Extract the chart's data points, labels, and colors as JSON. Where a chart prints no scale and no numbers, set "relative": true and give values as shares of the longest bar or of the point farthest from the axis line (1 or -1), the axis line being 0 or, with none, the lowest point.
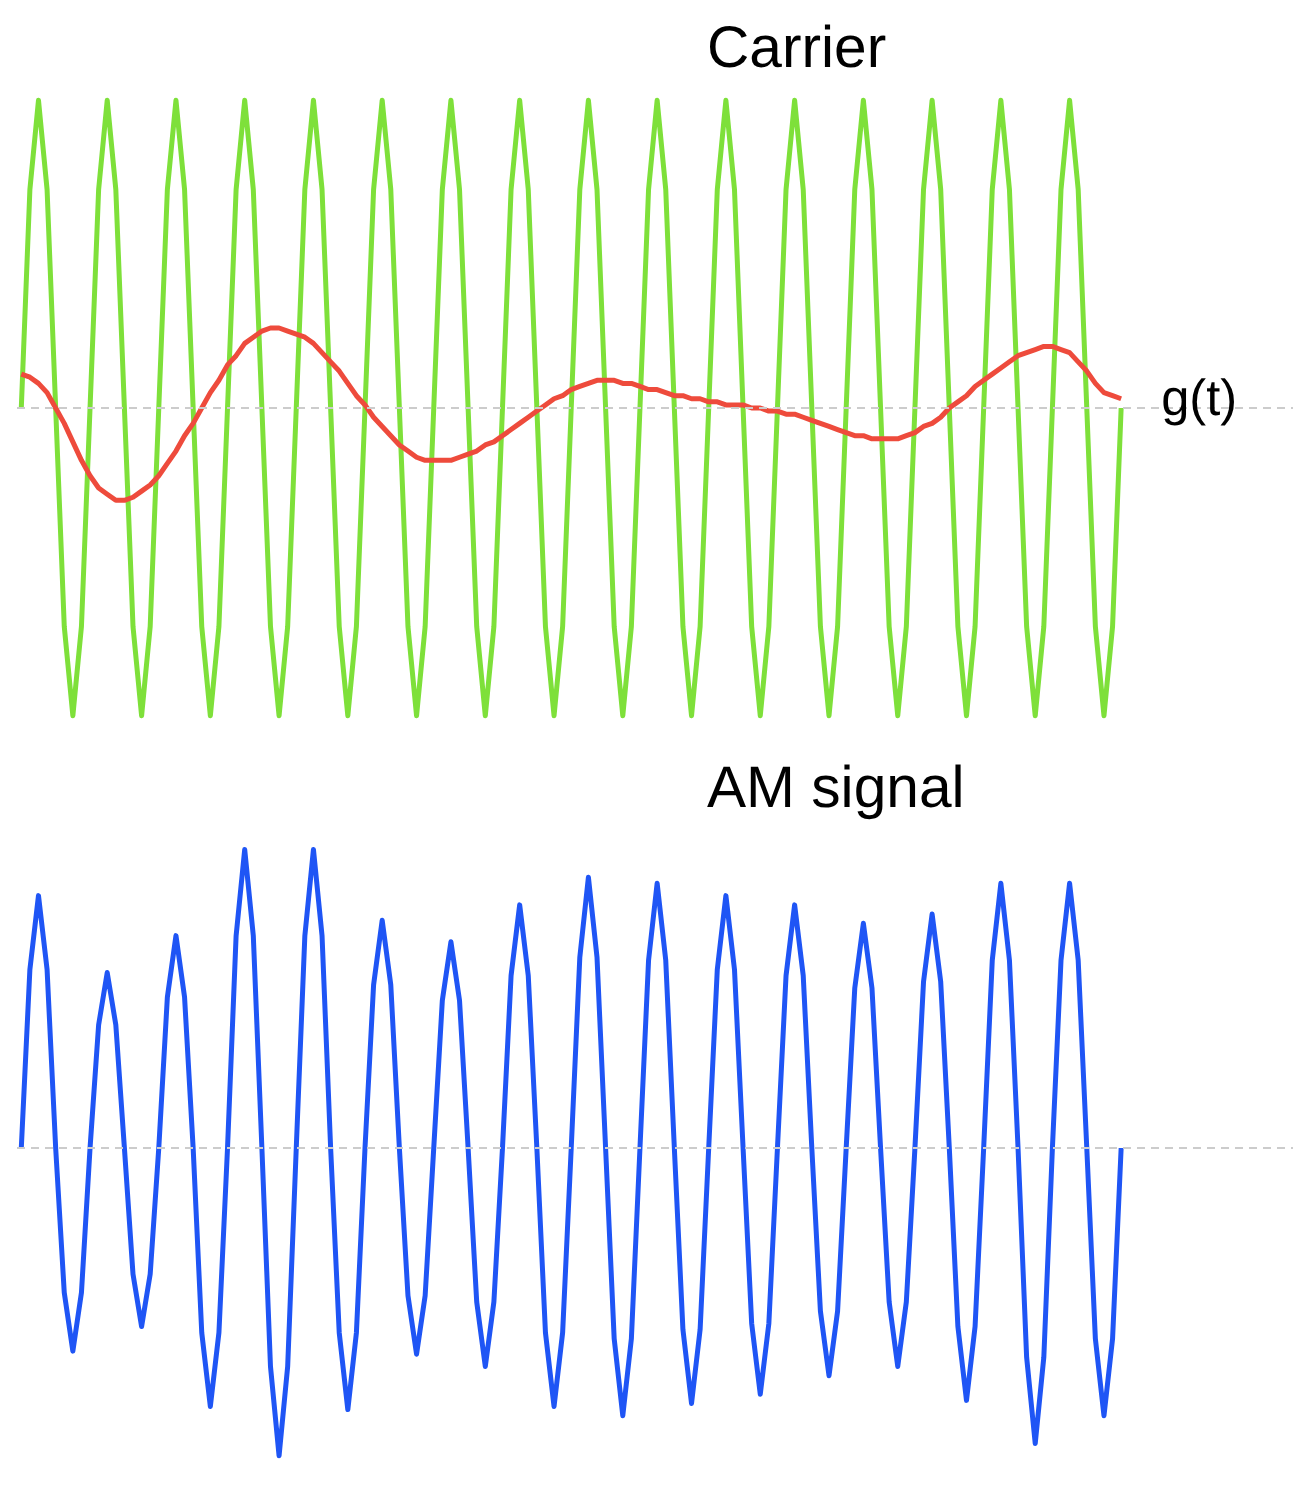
{
  "chart_data": [
    {
      "type": "line",
      "title": "Carrier",
      "relative": true,
      "categories": [
        null,
        null,
        null,
        null,
        null,
        null,
        null,
        null,
        null,
        null,
        null,
        null,
        null,
        null,
        null,
        null,
        null,
        null,
        null,
        null,
        null,
        null,
        null,
        null,
        null,
        null,
        null,
        null,
        null,
        null,
        null,
        null,
        null,
        null,
        null,
        null,
        null,
        null,
        null,
        null,
        null,
        null,
        null,
        null,
        null,
        null,
        null,
        null,
        null,
        null,
        null,
        null,
        null,
        null,
        null,
        null,
        null,
        null,
        null,
        null,
        null,
        null,
        null,
        null,
        null,
        null,
        null,
        null,
        null,
        null,
        null,
        null,
        null,
        null,
        null,
        null,
        null,
        null,
        null,
        null,
        null,
        null,
        null,
        null,
        null,
        null,
        null,
        null,
        null,
        null,
        null,
        null,
        null,
        null,
        null,
        null,
        null,
        null,
        null,
        null,
        null,
        null,
        null,
        null,
        null,
        null,
        null,
        null,
        null,
        null,
        null,
        null,
        null,
        null,
        null,
        null,
        null,
        null,
        null,
        null,
        null,
        null,
        null,
        null,
        null,
        null,
        null,
        null,
        null
      ],
      "ref_lines": [
        {
          "axis": "y",
          "value": 0,
          "color": "#cccccc",
          "line_style": "dashed"
        }
      ],
      "series": [
        {
          "color": "#7ee03a",
          "values": [
            0,
            0.71,
            1,
            0.71,
            0,
            -0.71,
            -1,
            -0.71,
            0,
            0.71,
            1,
            0.71,
            0,
            -0.71,
            -1,
            -0.71,
            0,
            0.71,
            1,
            0.71,
            0,
            -0.71,
            -1,
            -0.71,
            0,
            0.71,
            1,
            0.71,
            0,
            -0.71,
            -1,
            -0.71,
            0,
            0.71,
            1,
            0.71,
            0,
            -0.71,
            -1,
            -0.71,
            0,
            0.71,
            1,
            0.71,
            0,
            -0.71,
            -1,
            -0.71,
            0,
            0.71,
            1,
            0.71,
            0,
            -0.71,
            -1,
            -0.71,
            0,
            0.71,
            1,
            0.71,
            0,
            -0.71,
            -1,
            -0.71,
            0,
            0.71,
            1,
            0.71,
            0,
            -0.71,
            -1,
            -0.71,
            0,
            0.71,
            1,
            0.71,
            0,
            -0.71,
            -1,
            -0.71,
            0,
            0.71,
            1,
            0.71,
            0,
            -0.71,
            -1,
            -0.71,
            0,
            0.71,
            1,
            0.71,
            0,
            -0.71,
            -1,
            -0.71,
            0,
            0.71,
            1,
            0.71,
            0,
            -0.71,
            -1,
            -0.71,
            0,
            0.71,
            1,
            0.71,
            0,
            -0.71,
            -1,
            -0.71,
            0,
            0.71,
            1,
            0.71,
            0,
            -0.71,
            -1,
            -0.71,
            0,
            0.71,
            1,
            0.71,
            0,
            -0.71,
            -1,
            -0.71,
            0
          ]
        },
        {
          "name": "g(t)",
          "color": "#ee4b3c",
          "values": [
            0.11,
            0.1,
            0.08,
            0.05,
            0.0,
            -0.05,
            -0.11,
            -0.17,
            -0.22,
            -0.26,
            -0.28,
            -0.3,
            -0.3,
            -0.29,
            -0.27,
            -0.25,
            -0.22,
            -0.18,
            -0.14,
            -0.09,
            -0.05,
            0.0,
            0.05,
            0.09,
            0.14,
            0.17,
            0.21,
            0.23,
            0.25,
            0.26,
            0.26,
            0.25,
            0.24,
            0.23,
            0.21,
            0.18,
            0.15,
            0.12,
            0.08,
            0.04,
            0.01,
            -0.03,
            -0.06,
            -0.09,
            -0.12,
            -0.14,
            -0.16,
            -0.17,
            -0.17,
            -0.17,
            -0.17,
            -0.16,
            -0.15,
            -0.14,
            -0.12,
            -0.11,
            -0.09,
            -0.07,
            -0.05,
            -0.03,
            -0.01,
            0.01,
            0.03,
            0.04,
            0.06,
            0.07,
            0.08,
            0.09,
            0.09,
            0.09,
            0.08,
            0.08,
            0.07,
            0.06,
            0.06,
            0.05,
            0.04,
            0.04,
            0.03,
            0.03,
            0.02,
            0.02,
            0.01,
            0.01,
            0.01,
            0.0,
            0.0,
            -0.01,
            -0.01,
            -0.02,
            -0.02,
            -0.03,
            -0.04,
            -0.05,
            -0.06,
            -0.07,
            -0.08,
            -0.09,
            -0.09,
            -0.1,
            -0.1,
            -0.1,
            -0.1,
            -0.09,
            -0.08,
            -0.06,
            -0.05,
            -0.03,
            0.0,
            0.02,
            0.04,
            0.07,
            0.09,
            0.11,
            0.13,
            0.15,
            0.17,
            0.18,
            0.19,
            0.2,
            0.2,
            0.19,
            0.18,
            0.15,
            0.12,
            0.08,
            0.05,
            0.04,
            0.03
          ]
        }
      ]
    },
    {
      "type": "line",
      "title": "AM signal",
      "relative": true,
      "categories": [
        null,
        null,
        null,
        null,
        null,
        null,
        null,
        null,
        null,
        null,
        null,
        null,
        null,
        null,
        null,
        null,
        null,
        null,
        null,
        null,
        null,
        null,
        null,
        null,
        null,
        null,
        null,
        null,
        null,
        null,
        null,
        null,
        null,
        null,
        null,
        null,
        null,
        null,
        null,
        null,
        null,
        null,
        null,
        null,
        null,
        null,
        null,
        null,
        null,
        null,
        null,
        null,
        null,
        null,
        null,
        null,
        null,
        null,
        null,
        null,
        null,
        null,
        null,
        null,
        null,
        null,
        null,
        null,
        null,
        null,
        null,
        null,
        null,
        null,
        null,
        null,
        null,
        null,
        null,
        null,
        null,
        null,
        null,
        null,
        null,
        null,
        null,
        null,
        null,
        null,
        null,
        null,
        null,
        null,
        null,
        null,
        null,
        null,
        null,
        null,
        null,
        null,
        null,
        null,
        null,
        null,
        null,
        null,
        null,
        null,
        null,
        null,
        null,
        null,
        null,
        null,
        null,
        null,
        null,
        null,
        null,
        null,
        null,
        null,
        null,
        null,
        null,
        null,
        null
      ],
      "ref_lines": [
        {
          "axis": "y",
          "value": 0,
          "color": "#cccccc",
          "line_style": "dashed"
        }
      ],
      "series": [
        {
          "color": "#1f55f5",
          "values": [
            0,
            0.58,
            0.82,
            0.58,
            0,
            -0.47,
            -0.66,
            -0.47,
            0,
            0.4,
            0.57,
            0.4,
            0,
            -0.41,
            -0.58,
            -0.41,
            0,
            0.49,
            0.69,
            0.49,
            0,
            -0.6,
            -0.84,
            -0.6,
            0,
            0.69,
            0.97,
            0.69,
            0,
            -0.71,
            -1,
            -0.71,
            0,
            0.69,
            0.97,
            0.69,
            0,
            -0.6,
            -0.85,
            -0.6,
            0,
            0.53,
            0.74,
            0.53,
            0,
            -0.48,
            -0.67,
            -0.48,
            0,
            0.48,
            0.67,
            0.48,
            0,
            -0.5,
            -0.71,
            -0.5,
            0,
            0.56,
            0.79,
            0.56,
            0,
            -0.6,
            -0.84,
            -0.6,
            0,
            0.62,
            0.88,
            0.62,
            0,
            -0.62,
            -0.87,
            -0.62,
            0,
            0.61,
            0.86,
            0.61,
            0,
            -0.59,
            -0.83,
            -0.59,
            0,
            0.58,
            0.82,
            0.58,
            0,
            -0.57,
            -0.8,
            -0.57,
            0,
            0.56,
            0.79,
            0.56,
            0,
            -0.53,
            -0.74,
            -0.53,
            0,
            0.52,
            0.73,
            0.52,
            0,
            -0.5,
            -0.71,
            -0.5,
            0,
            0.54,
            0.76,
            0.54,
            0,
            -0.58,
            -0.82,
            -0.58,
            0,
            0.61,
            0.86,
            0.61,
            0,
            -0.68,
            -0.96,
            -0.68,
            0,
            0.61,
            0.86,
            0.61,
            0,
            -0.62,
            -0.87,
            -0.62,
            0
          ]
        }
      ]
    }
  ]
}
